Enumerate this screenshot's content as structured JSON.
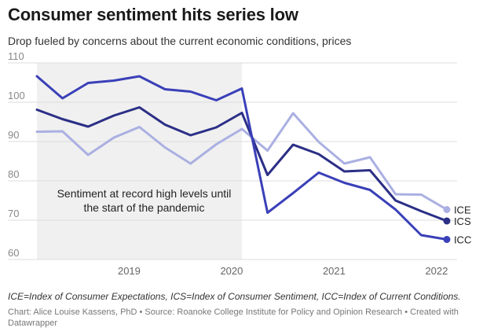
{
  "title": "Consumer sentiment hits series low",
  "subtitle": "Drop fueled by concerns about the current economic conditions, prices",
  "notes": "ICE=Index of Consumer Expectations, ICS=Index of Consumer Sentiment, ICC=Index of Current Conditions.",
  "credit": "Chart: Alice Louise Kassens, PhD • Source: Roanoke College Institute for Policy and Opinion Research • Created with Datawrapper",
  "chart_data": {
    "type": "line",
    "grid": true,
    "ylim": [
      60,
      110
    ],
    "xlim": [
      2018.1,
      2022.2
    ],
    "yticks": [
      60,
      70,
      80,
      90,
      100,
      110
    ],
    "xticks": [
      {
        "value": 2019,
        "label": "2019"
      },
      {
        "value": 2020,
        "label": "2020"
      },
      {
        "value": 2021,
        "label": "2021"
      },
      {
        "value": 2022,
        "label": "2022"
      }
    ],
    "shaded_region": {
      "x_start": 2018.1,
      "x_end": 2020.1,
      "label_lines": [
        "Sentiment at record high levels until",
        "the start of the pandemic"
      ]
    },
    "series": [
      {
        "name": "ICE",
        "color": "#aab0e2",
        "x": [
          2018.1,
          2018.35,
          2018.6,
          2018.85,
          2019.1,
          2019.35,
          2019.6,
          2019.85,
          2020.1,
          2020.35,
          2020.6,
          2020.85,
          2021.1,
          2021.35,
          2021.6,
          2021.85,
          2022.1
        ],
        "values": [
          92.5,
          92.6,
          86.6,
          91.0,
          93.7,
          88.5,
          84.4,
          89.3,
          93.2,
          87.7,
          97.2,
          89.9,
          84.4,
          86.0,
          76.6,
          76.5,
          72.7
        ]
      },
      {
        "name": "ICS",
        "color": "#2b2f86",
        "x": [
          2018.1,
          2018.35,
          2018.6,
          2018.85,
          2019.1,
          2019.35,
          2019.6,
          2019.85,
          2020.1,
          2020.35,
          2020.6,
          2020.85,
          2021.1,
          2021.35,
          2021.6,
          2021.85,
          2022.1
        ],
        "values": [
          98.1,
          95.7,
          93.8,
          96.6,
          98.7,
          94.3,
          91.6,
          93.6,
          97.3,
          81.5,
          89.2,
          86.8,
          82.4,
          82.7,
          75.0,
          72.3,
          69.8
        ]
      },
      {
        "name": "ICC",
        "color": "#3a40b8",
        "x": [
          2018.1,
          2018.35,
          2018.6,
          2018.85,
          2019.1,
          2019.35,
          2019.6,
          2019.85,
          2020.1,
          2020.35,
          2020.6,
          2020.85,
          2021.1,
          2021.35,
          2021.6,
          2021.85,
          2022.1
        ],
        "values": [
          106.6,
          101.0,
          104.9,
          105.5,
          106.6,
          103.3,
          102.7,
          100.5,
          103.5,
          71.9,
          76.9,
          82.1,
          79.5,
          77.7,
          72.7,
          66.2,
          65.1
        ]
      }
    ]
  }
}
